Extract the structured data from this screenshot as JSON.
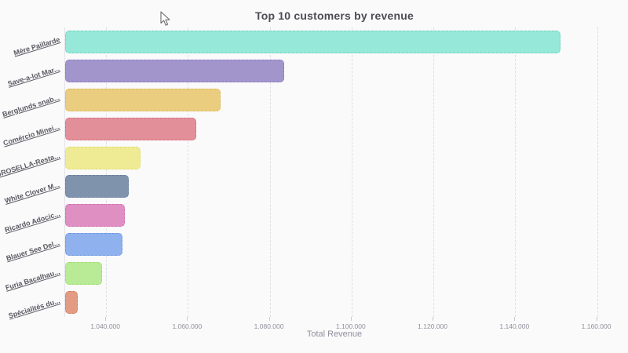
{
  "page": {
    "background": "#fafafb"
  },
  "chart_data": {
    "type": "bar",
    "orientation": "horizontal",
    "title": "Top 10 customers by revenue",
    "xlabel": "Total Revenue",
    "ylabel": "",
    "xlim": [
      1030000,
      1162000
    ],
    "grid": "vertical-dashed",
    "legend": "none",
    "x_ticks": [
      {
        "value": 1040000,
        "label": "1.040.000"
      },
      {
        "value": 1060000,
        "label": "1.060.000"
      },
      {
        "value": 1080000,
        "label": "1.080.000"
      },
      {
        "value": 1100000,
        "label": "1.100.000"
      },
      {
        "value": 1120000,
        "label": "1.120.000"
      },
      {
        "value": 1140000,
        "label": "1.140.000"
      },
      {
        "value": 1160000,
        "label": "1.160.000"
      }
    ],
    "bars": [
      {
        "label": "Mère Paillarde",
        "value": 1151000,
        "fill": "#96e8d9",
        "border": "#6fd3bd"
      },
      {
        "label": "Save-a-lot Mar...",
        "value": 1083500,
        "fill": "#a295cc",
        "border": "#8a7bbe"
      },
      {
        "label": "Berglunds snab...",
        "value": 1068000,
        "fill": "#eacd7f",
        "border": "#ddb95a"
      },
      {
        "label": "Comércio Minei...",
        "value": 1062000,
        "fill": "#e28f99",
        "border": "#d5707e"
      },
      {
        "label": "GROSELLA-Resta...",
        "value": 1048500,
        "fill": "#efeb94",
        "border": "#e2dc6b"
      },
      {
        "label": "White Clover M...",
        "value": 1045500,
        "fill": "#8093ac",
        "border": "#69809d"
      },
      {
        "label": "Ricardo Adocic...",
        "value": 1044500,
        "fill": "#e08fc3",
        "border": "#d16fb0"
      },
      {
        "label": "Blauer See Del...",
        "value": 1044000,
        "fill": "#8fb1ed",
        "border": "#6f98e2"
      },
      {
        "label": "Furia Bacalhau...",
        "value": 1039000,
        "fill": "#b9ea96",
        "border": "#9edd74"
      },
      {
        "label": "Spécialités du...",
        "value": 1033000,
        "fill": "#e39b83",
        "border": "#d67e61"
      }
    ]
  }
}
